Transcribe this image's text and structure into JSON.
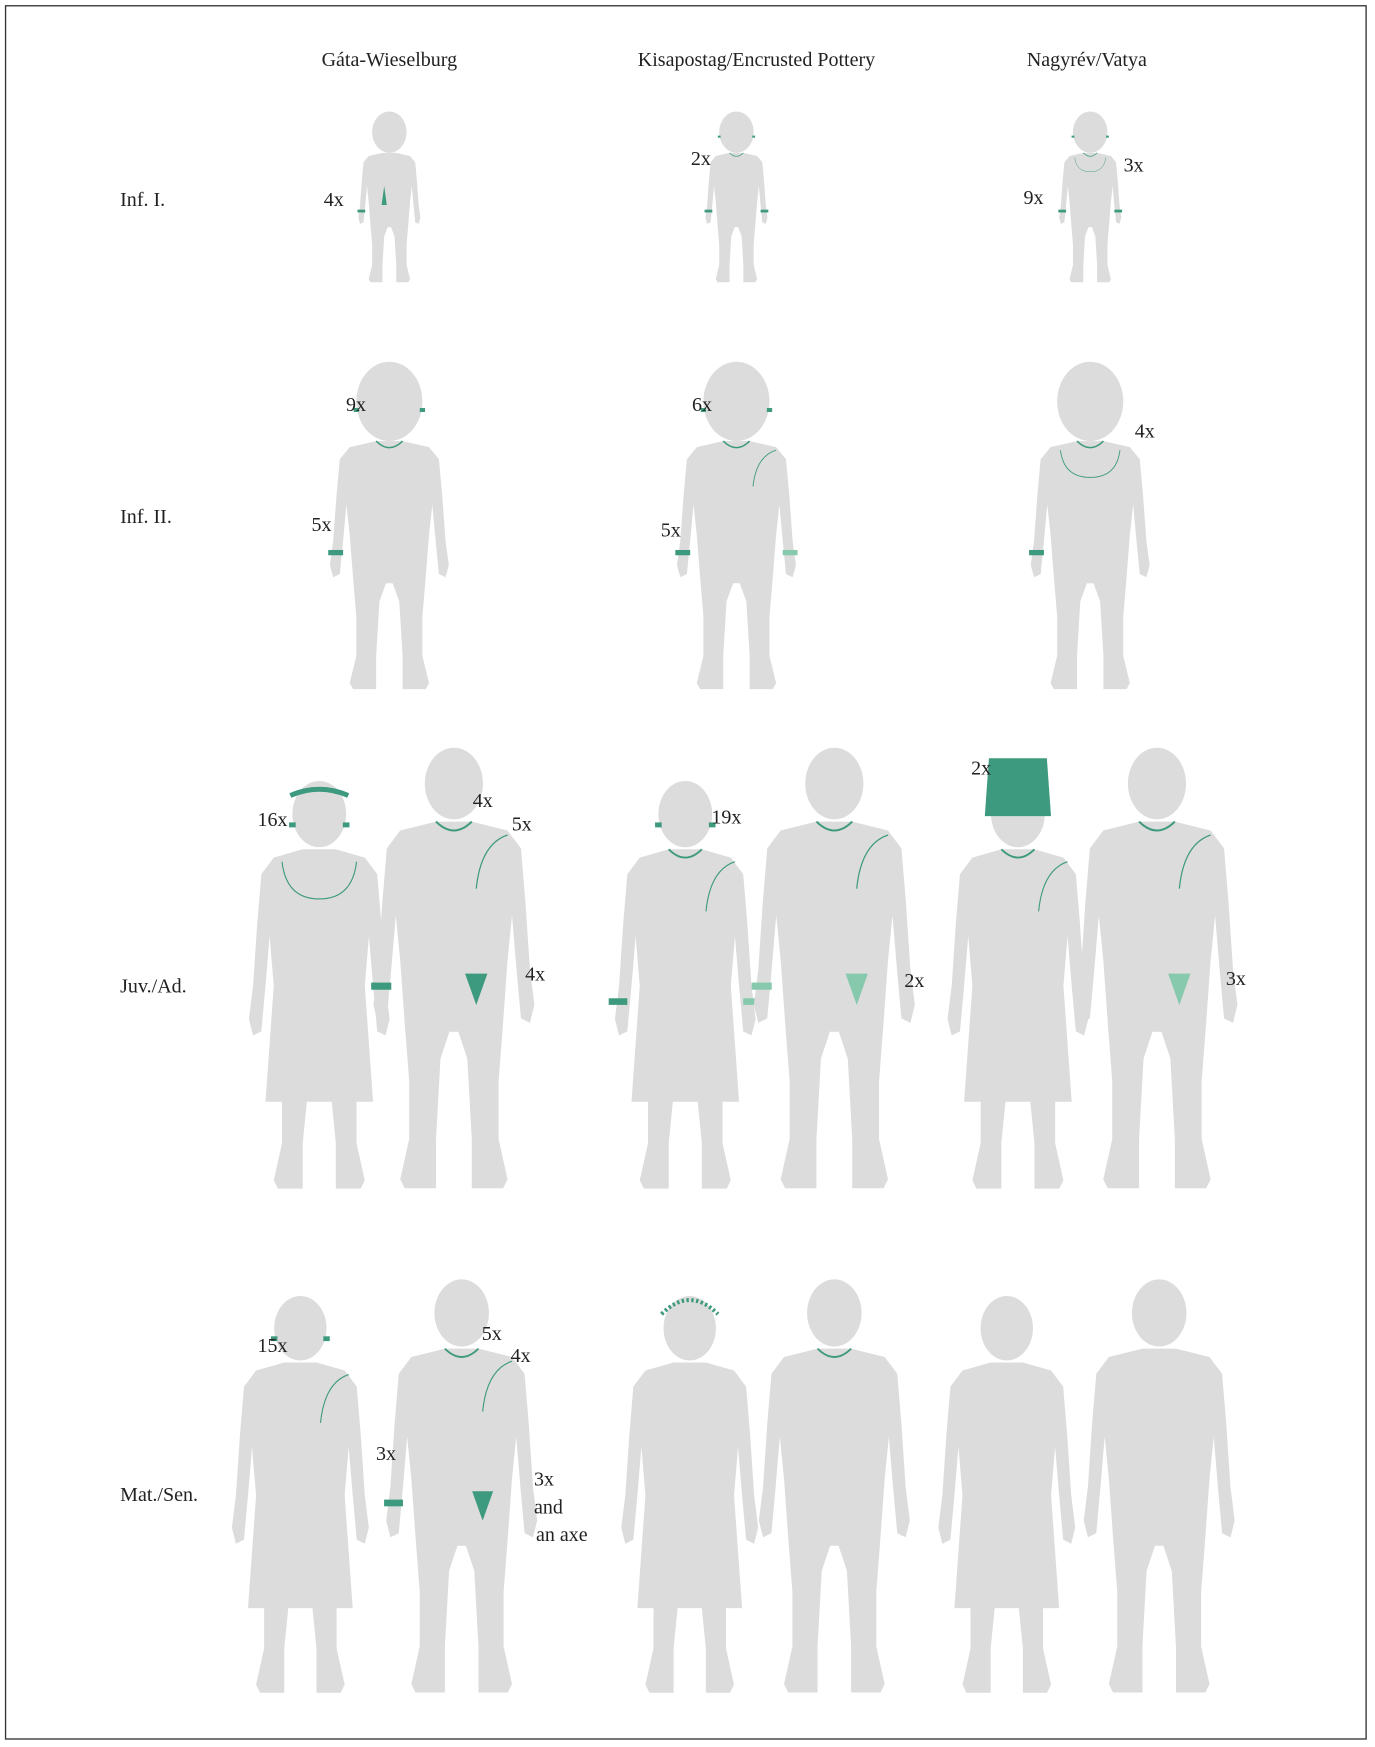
{
  "columns": [
    "Gáta-Wieselburg",
    "Kisapostag/Encrusted Pottery",
    "Nagyrév/Vatya"
  ],
  "rows": [
    "Inf. I.",
    "Inf. II.",
    "Juv./Ad.",
    "Mat./Sen."
  ],
  "annotations": [
    "4x",
    "2x",
    "3x",
    "9x",
    "9x",
    "5x",
    "6x",
    "5x",
    "4x",
    "16x",
    "4x",
    "5x",
    "4x",
    "19x",
    "2x",
    "2x",
    "3x",
    "15x",
    "5x",
    "4x",
    "3x",
    "3x",
    "and",
    "an axe"
  ]
}
